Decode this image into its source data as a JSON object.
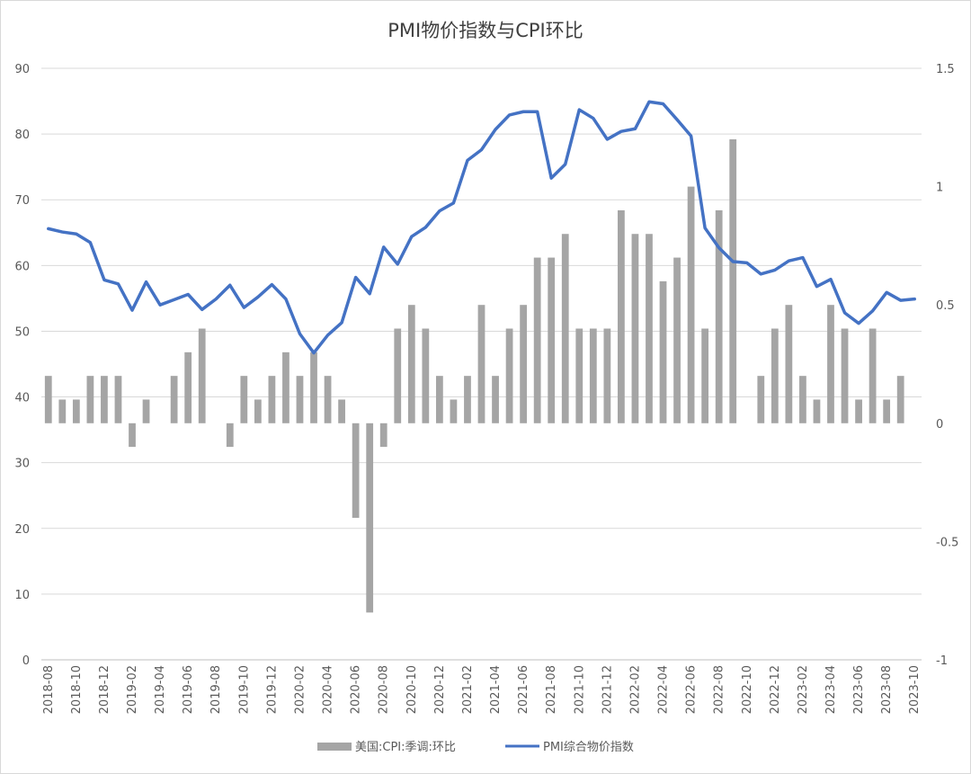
{
  "chart_data": {
    "type": "bar",
    "title": "PMI物价指数与CPI环比",
    "xlabel": "",
    "ylabel": "",
    "ylim_left": [
      0,
      90
    ],
    "ylim_right": [
      -1,
      1.5
    ],
    "yticks_left": [
      "0",
      "10",
      "20",
      "30",
      "40",
      "50",
      "60",
      "70",
      "80",
      "90"
    ],
    "yticks_right": [
      "-1",
      "-0.5",
      "0",
      "0.5",
      "1",
      "1.5"
    ],
    "grid": true,
    "legend_position": "bottom",
    "categories": [
      "2018-08",
      "2018-09",
      "2018-10",
      "2018-11",
      "2018-12",
      "2019-01",
      "2019-02",
      "2019-03",
      "2019-04",
      "2019-05",
      "2019-06",
      "2019-07",
      "2019-08",
      "2019-09",
      "2019-10",
      "2019-11",
      "2019-12",
      "2020-01",
      "2020-02",
      "2020-03",
      "2020-04",
      "2020-05",
      "2020-06",
      "2020-07",
      "2020-08",
      "2020-09",
      "2020-10",
      "2020-11",
      "2020-12",
      "2021-01",
      "2021-02",
      "2021-03",
      "2021-04",
      "2021-05",
      "2021-06",
      "2021-07",
      "2021-08",
      "2021-09",
      "2021-10",
      "2021-11",
      "2021-12",
      "2022-01",
      "2022-02",
      "2022-03",
      "2022-04",
      "2022-05",
      "2022-06",
      "2022-07",
      "2022-08",
      "2022-09",
      "2022-10",
      "2022-11",
      "2022-12",
      "2023-01",
      "2023-02",
      "2023-03",
      "2023-04",
      "2023-05",
      "2023-06",
      "2023-07",
      "2023-08",
      "2023-09",
      "2023-10"
    ],
    "x_tick_labels": [
      "2018-08",
      "2018-10",
      "2018-12",
      "2019-02",
      "2019-04",
      "2019-06",
      "2019-08",
      "2019-10",
      "2019-12",
      "2020-02",
      "2020-04",
      "2020-06",
      "2020-08",
      "2020-10",
      "2020-12",
      "2021-02",
      "2021-04",
      "2021-06",
      "2021-08",
      "2021-10",
      "2021-12",
      "2022-02",
      "2022-04",
      "2022-06",
      "2022-08",
      "2022-10",
      "2022-12",
      "2023-02",
      "2023-04",
      "2023-06",
      "2023-08",
      "2023-10"
    ],
    "series": [
      {
        "name": "美国:CPI:季调:环比",
        "type": "bar",
        "axis": "right",
        "color": "#a5a5a5",
        "values": [
          0.2,
          0.1,
          0.1,
          0.2,
          0.2,
          0.2,
          -0.1,
          0.1,
          null,
          0.2,
          0.3,
          0.4,
          null,
          -0.1,
          0.2,
          0.1,
          0.2,
          0.3,
          0.2,
          0.3,
          0.2,
          0.1,
          -0.4,
          -0.8,
          -0.1,
          0.4,
          0.5,
          0.4,
          0.2,
          0.1,
          0.2,
          0.5,
          0.2,
          0.4,
          0.5,
          0.7,
          0.7,
          0.8,
          0.4,
          0.4,
          0.4,
          0.9,
          0.8,
          0.8,
          0.6,
          0.7,
          1.0,
          0.4,
          0.9,
          1.2,
          null,
          0.2,
          0.4,
          0.5,
          0.2,
          0.1,
          0.5,
          0.4,
          0.1,
          0.4,
          0.1,
          0.2,
          null
        ]
      },
      {
        "name": "PMI综合物价指数",
        "type": "line",
        "axis": "left",
        "color": "#4472c4",
        "values": [
          65.6,
          65.1,
          64.8,
          63.5,
          57.8,
          57.2,
          53.2,
          57.5,
          54.0,
          54.8,
          55.6,
          53.3,
          54.9,
          57.0,
          53.6,
          55.2,
          57.1,
          54.9,
          49.6,
          46.7,
          49.4,
          51.3,
          58.2,
          55.7,
          62.8,
          60.2,
          64.4,
          65.8,
          68.3,
          69.5,
          76.0,
          77.6,
          80.7,
          82.9,
          83.4,
          83.4,
          73.3,
          75.4,
          83.7,
          82.4,
          79.2,
          80.4,
          80.8,
          84.9,
          84.6,
          82.2,
          79.7,
          65.7,
          62.7,
          60.6,
          60.4,
          58.7,
          59.3,
          60.7,
          61.2,
          56.8,
          57.9,
          52.8,
          51.2,
          53.1,
          55.9,
          54.7,
          54.9
        ]
      }
    ]
  }
}
